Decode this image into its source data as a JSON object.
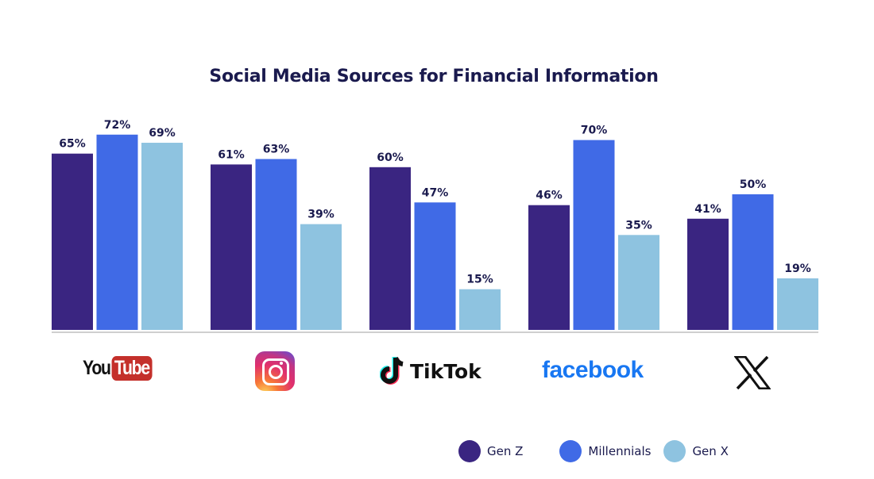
{
  "chart_data": {
    "type": "bar",
    "title": "Social Media Sources for Financial Information",
    "categories": [
      "YouTube",
      "Instagram",
      "TikTok",
      "facebook",
      "X"
    ],
    "series": [
      {
        "name": "Gen Z",
        "color": "#3a2581",
        "values": [
          65,
          61,
          60,
          46,
          41
        ]
      },
      {
        "name": "Millennials",
        "color": "#406ae6",
        "values": [
          72,
          63,
          47,
          70,
          50
        ]
      },
      {
        "name": "Gen X",
        "color": "#8ec3e0",
        "values": [
          69,
          39,
          15,
          35,
          19
        ]
      }
    ],
    "value_suffix": "%",
    "ylim": [
      0,
      100
    ],
    "grid": false,
    "legend_position": "bottom-right"
  },
  "logos": {
    "youtube_you": "You",
    "youtube_tube": "Tube",
    "tiktok": "TikTok",
    "facebook": "facebook",
    "x": "X"
  }
}
